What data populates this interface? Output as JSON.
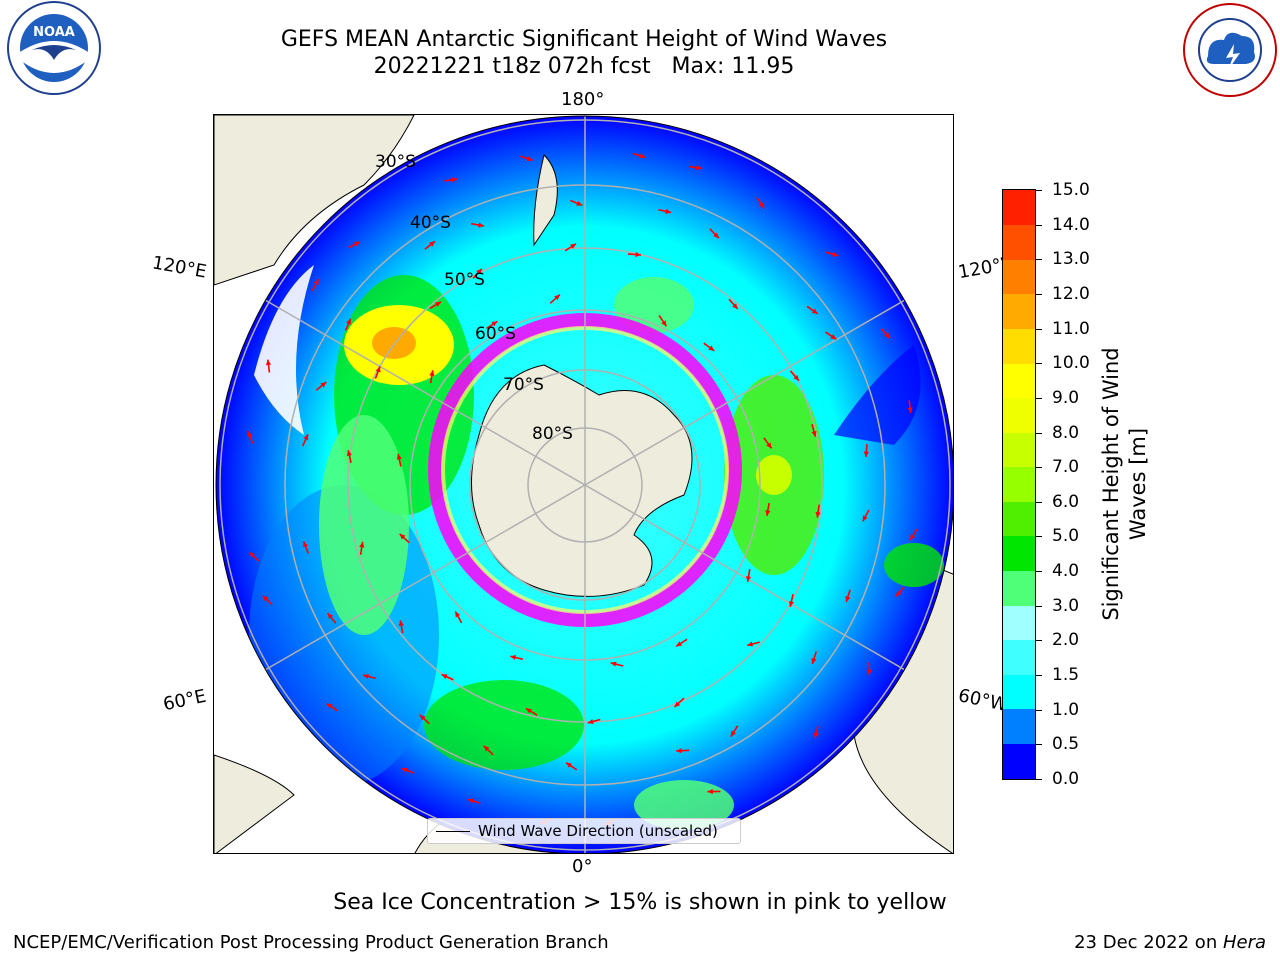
{
  "title": {
    "line1": "GEFS MEAN Antarctic Significant Height of Wind Waves",
    "line2": "20221221 t18z 072h fcst   Max: 11.95"
  },
  "map": {
    "projection": "south-polar-stereographic",
    "longitude_labels": {
      "top": "180°",
      "bottom": "0°",
      "upper_left": "120°E",
      "upper_right": "120°W",
      "lower_left": "60°E",
      "lower_right": "60°W"
    },
    "latitude_labels": [
      "30°S",
      "40°S",
      "50°S",
      "60°S",
      "70°S",
      "80°S"
    ],
    "legend_label": "Wind Wave Direction (unscaled)",
    "colors": {
      "land": "#eeecdc",
      "coastline": "#000000",
      "gridlines": "#b0b0b0",
      "arrows": "#ff0000",
      "sea_ice_low": "#ff00ff",
      "sea_ice_high": "#ffff66"
    }
  },
  "colorbar": {
    "title_line1": "Significant Height of Wind",
    "title_line2": "Waves [m]",
    "ticks": [
      "15.0",
      "14.0",
      "13.0",
      "12.0",
      "11.0",
      "10.0",
      "9.0",
      "8.0",
      "7.0",
      "6.0",
      "5.0",
      "4.0",
      "3.0",
      "2.0",
      "1.5",
      "1.0",
      "0.5",
      "0.0"
    ],
    "colors": [
      "#0000ff",
      "#0080ff",
      "#00ffff",
      "#40ffff",
      "#a0ffff",
      "#50ff78",
      "#00e600",
      "#50ee00",
      "#96ff00",
      "#c8ff00",
      "#f0ff00",
      "#ffff00",
      "#ffdd00",
      "#ffaa00",
      "#ff8000",
      "#ff5000",
      "#ff2000"
    ]
  },
  "ice_note": "Sea Ice Concentration > 15% is shown in pink to yellow",
  "footer": {
    "left": "NCEP/EMC/Verification Post Processing Product Generation Branch",
    "right_date": "23 Dec 2022 on ",
    "right_machine": "Hera"
  }
}
